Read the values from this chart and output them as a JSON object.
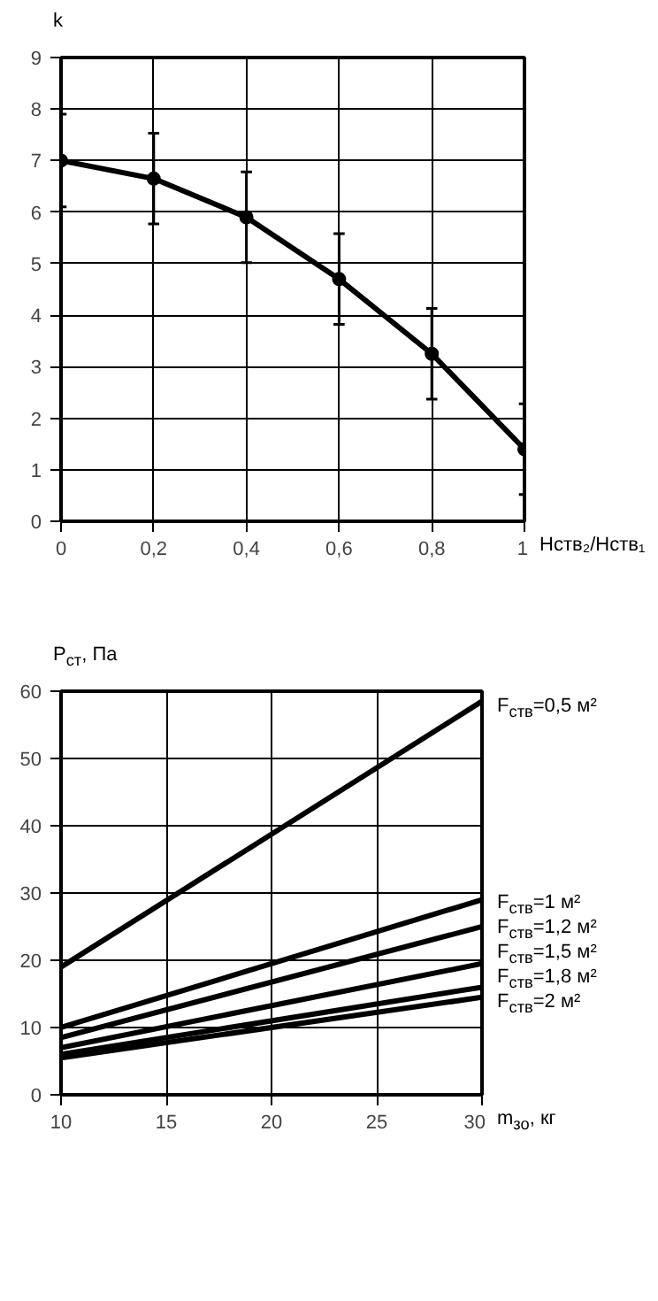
{
  "chart_data": [
    {
      "type": "line",
      "ylabel": "k",
      "xlabel": "Нств₂/Нств₁",
      "x": [
        0,
        0.2,
        0.4,
        0.6,
        0.8,
        1
      ],
      "xlim": [
        0,
        1
      ],
      "ylim": [
        0,
        9
      ],
      "xticks": [
        0,
        {
          "value": 0.2,
          "label": "0,2"
        },
        {
          "value": 0.4,
          "label": "0,4"
        },
        {
          "value": 0.6,
          "label": "0,6"
        },
        {
          "value": 0.8,
          "label": "0,8"
        },
        1
      ],
      "yticks": [
        0,
        1,
        2,
        3,
        4,
        5,
        6,
        7,
        8,
        9
      ],
      "grid": true,
      "marker": "circle",
      "line_style": "solid",
      "series": [
        {
          "color": "#000000",
          "values": [
            7.0,
            6.65,
            5.9,
            4.7,
            3.25,
            1.4
          ],
          "errors": [
            0.9,
            0.88,
            0.88,
            0.88,
            0.88,
            0.88
          ]
        }
      ]
    },
    {
      "type": "line",
      "ylabel": "P$_{ст}$, Па",
      "xlabel": "m$_{зо}$, кг",
      "x": [
        10,
        30
      ],
      "xlim": [
        10,
        30
      ],
      "ylim": [
        0,
        60
      ],
      "xticks": [
        10,
        15,
        20,
        25,
        30
      ],
      "yticks": [
        0,
        10,
        20,
        30,
        40,
        50,
        60
      ],
      "grid": true,
      "line_style": "solid",
      "series": [
        {
          "name": "F$_{ств}$=0,5 м²",
          "color": "#000000",
          "values": [
            19,
            58.5
          ]
        },
        {
          "name": "F$_{ств}$=1 м²",
          "color": "#000000",
          "values": [
            10,
            29
          ]
        },
        {
          "name": "F$_{ств}$=1,2 м²",
          "color": "#000000",
          "values": [
            8.5,
            25
          ]
        },
        {
          "name": "F$_{ств}$=1,5 м²",
          "color": "#000000",
          "values": [
            7,
            19.5
          ]
        },
        {
          "name": "F$_{ств}$=1,8 м²",
          "color": "#000000",
          "values": [
            6,
            16
          ]
        },
        {
          "name": "F$_{ств}$=2 м²",
          "color": "#000000",
          "values": [
            5.5,
            14.5
          ]
        }
      ]
    }
  ]
}
